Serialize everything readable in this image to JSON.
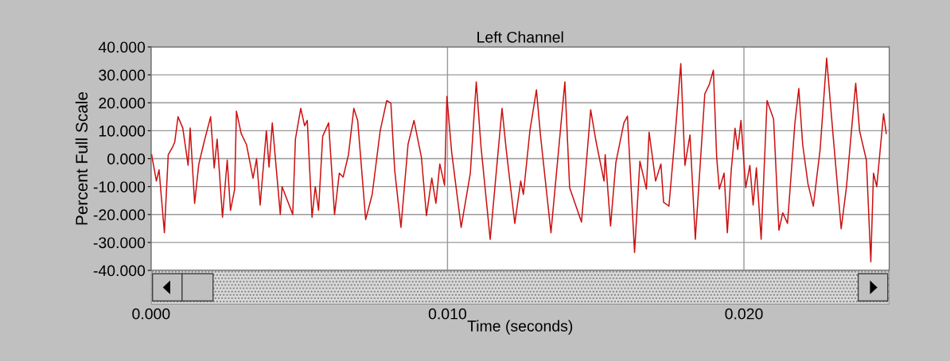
{
  "chart_data": {
    "type": "line",
    "title": "Left Channel",
    "xlabel": "Time (seconds)",
    "ylabel": "Percent Full Scale",
    "xlim": [
      0,
      0.0249
    ],
    "ylim": [
      -40,
      40
    ],
    "xticks": [
      {
        "value": 0,
        "label": "0.000"
      },
      {
        "value": 0.01,
        "label": "0.010"
      },
      {
        "value": 0.02,
        "label": "0.020"
      }
    ],
    "yticks": [
      {
        "value": -40,
        "label": "-40.000"
      },
      {
        "value": -30,
        "label": "-30.000"
      },
      {
        "value": -20,
        "label": "-20.000"
      },
      {
        "value": -10,
        "label": "-10.000"
      },
      {
        "value": 0,
        "label": "0.000"
      },
      {
        "value": 10,
        "label": "10.000"
      },
      {
        "value": 20,
        "label": "20.000"
      },
      {
        "value": 30,
        "label": "30.000"
      },
      {
        "value": 40,
        "label": "40.000"
      }
    ],
    "grid": true,
    "marker": "none",
    "line_style": "solid",
    "series": [
      {
        "color": "#cc1111",
        "x": [
          2e-05,
          0.00018,
          0.00027,
          0.00045,
          0.00058,
          0.00072,
          0.0008,
          0.00091,
          0.00107,
          0.00125,
          0.00132,
          0.00147,
          0.00161,
          0.00179,
          0.00201,
          0.00213,
          0.00223,
          0.00241,
          0.00257,
          0.00268,
          0.00282,
          0.00288,
          0.00304,
          0.00322,
          0.00344,
          0.00356,
          0.00368,
          0.00389,
          0.00398,
          0.00409,
          0.00436,
          0.00442,
          0.00478,
          0.00487,
          0.00505,
          0.00518,
          0.00527,
          0.00543,
          0.00554,
          0.00565,
          0.00579,
          0.00599,
          0.00619,
          0.00635,
          0.00648,
          0.00666,
          0.00684,
          0.00697,
          0.00724,
          0.00746,
          0.00773,
          0.00795,
          0.00809,
          0.00822,
          0.00843,
          0.00867,
          0.00887,
          0.00912,
          0.00929,
          0.00947,
          0.00961,
          0.00974,
          0.0099,
          0.00998,
          0.01014,
          0.01046,
          0.01077,
          0.01097,
          0.01113,
          0.01144,
          0.01184,
          0.01198,
          0.01227,
          0.01247,
          0.01256,
          0.01278,
          0.013,
          0.01314,
          0.01349,
          0.01396,
          0.01412,
          0.01452,
          0.01483,
          0.01501,
          0.01528,
          0.01532,
          0.0155,
          0.01568,
          0.01595,
          0.01607,
          0.01631,
          0.01649,
          0.01671,
          0.0168,
          0.01702,
          0.0172,
          0.01729,
          0.01747,
          0.01769,
          0.01787,
          0.01801,
          0.01818,
          0.01836,
          0.01868,
          0.01883,
          0.01897,
          0.01908,
          0.01917,
          0.01933,
          0.01944,
          0.01957,
          0.0197,
          0.01979,
          0.0199,
          0.02006,
          0.0202,
          0.02031,
          0.02042,
          0.02058,
          0.02078,
          0.021,
          0.02118,
          0.02131,
          0.02147,
          0.02172,
          0.02185,
          0.02198,
          0.02216,
          0.02234,
          0.02257,
          0.02279,
          0.02301,
          0.02328,
          0.02346,
          0.02377,
          0.0239,
          0.02413,
          0.02428,
          0.02437,
          0.02448,
          0.02471,
          0.0248
        ],
        "values": [
          1.4,
          -8,
          -4,
          -26.5,
          1.4,
          4,
          6,
          15,
          11,
          -2.4,
          11,
          -16,
          -2,
          6,
          15,
          -3.3,
          7,
          -21,
          -0.5,
          -18.5,
          -11,
          17,
          9,
          5,
          -7,
          0,
          -16.6,
          10,
          -3,
          12.8,
          -20,
          -10,
          -20,
          7,
          18,
          11.8,
          13.7,
          -21,
          -10,
          -18.5,
          8,
          12.8,
          -20,
          -5.2,
          -6.6,
          1.4,
          18,
          13.7,
          -21.8,
          -12.8,
          10,
          20.8,
          19.9,
          -4.3,
          -24.6,
          5.2,
          13.7,
          0.5,
          -20.4,
          -7,
          -16,
          -1.9,
          -9.5,
          22.3,
          2.4,
          -24.6,
          -5.2,
          27.5,
          4.3,
          -28.9,
          18,
          3.3,
          -23.2,
          -8,
          -12.8,
          10,
          24.6,
          8,
          -26.5,
          27.5,
          -10.4,
          -22.7,
          17.5,
          6.2,
          -8,
          1.4,
          -24.1,
          -1.4,
          12.8,
          15.2,
          -33.6,
          -0.9,
          -10.9,
          9.5,
          -8,
          -1.9,
          -15.6,
          -17,
          10,
          34,
          -2.4,
          8.5,
          -28.9,
          23.2,
          26.5,
          31.7,
          0.5,
          -10.9,
          -5.2,
          -26.5,
          -4.3,
          10.9,
          3.3,
          13.7,
          -10.4,
          -2.4,
          -16.6,
          -3.3,
          -28.9,
          20.8,
          14.2,
          -25.6,
          -19.4,
          -23.2,
          12.8,
          25.1,
          5.2,
          -9,
          -17,
          3.3,
          36,
          8,
          -25.1,
          -10,
          27,
          10,
          -0.5,
          -36.9,
          -5.2,
          -10,
          16.1,
          9
        ]
      }
    ]
  }
}
